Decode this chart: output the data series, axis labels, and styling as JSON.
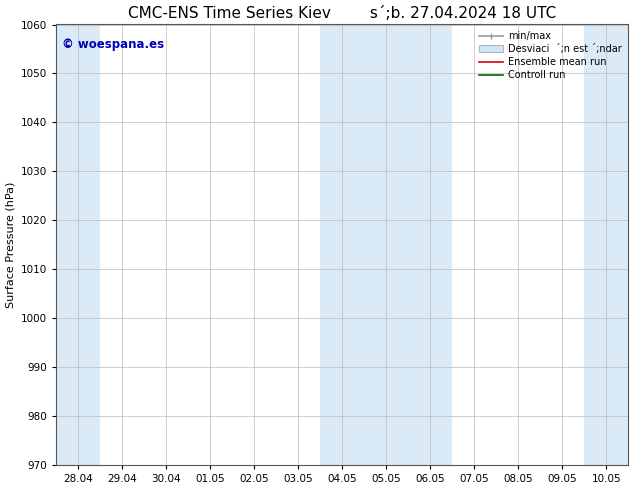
{
  "title": "CMC-ENS Time Series Kiev        s´;b. 27.04.2024 18 UTC",
  "ylabel": "Surface Pressure (hPa)",
  "ylim": [
    970,
    1060
  ],
  "yticks": [
    970,
    980,
    990,
    1000,
    1010,
    1020,
    1030,
    1040,
    1050,
    1060
  ],
  "xtick_labels": [
    "28.04",
    "29.04",
    "30.04",
    "01.05",
    "02.05",
    "03.05",
    "04.05",
    "05.05",
    "06.05",
    "07.05",
    "08.05",
    "09.05",
    "10.05"
  ],
  "band_color": "#daeaf6",
  "background_color": "#ffffff",
  "watermark_text": "© woespana.es",
  "watermark_color": "#0000bb",
  "title_fontsize": 11,
  "axis_fontsize": 8,
  "tick_fontsize": 7.5,
  "fig_width": 6.34,
  "fig_height": 4.9,
  "dpi": 100
}
